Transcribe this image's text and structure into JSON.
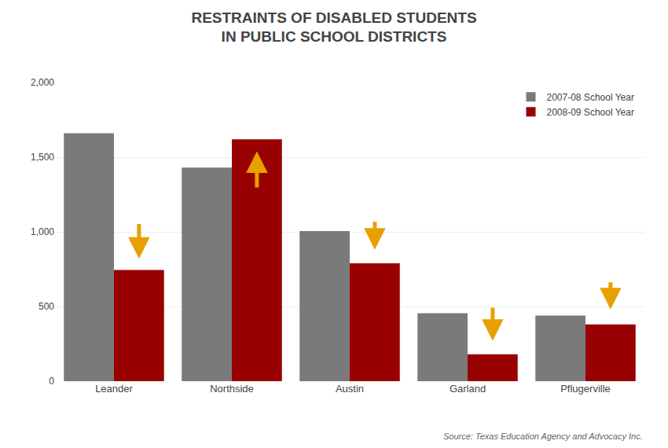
{
  "chart_data": {
    "type": "bar",
    "title": "RESTRAINTS OF DISABLED STUDENTS\nIN PUBLIC SCHOOL DISTRICTS",
    "categories": [
      "Leander",
      "Northside",
      "Austin",
      "Garland",
      "Pflugerville"
    ],
    "series": [
      {
        "name": "2007-08 School Year",
        "color": "#7a7a7a",
        "values": [
          1660,
          1430,
          1005,
          455,
          440
        ]
      },
      {
        "name": "2008-09 School Year",
        "color": "#990000",
        "values": [
          745,
          1620,
          790,
          180,
          380
        ]
      }
    ],
    "ylim": [
      0,
      2000
    ],
    "yticks": [
      0,
      500,
      {
        "value": 1000,
        "label": "1,000"
      },
      {
        "value": 1500,
        "label": "1,500"
      },
      {
        "value": 2000,
        "label": "2,000"
      }
    ],
    "grid": true,
    "legend": "upper right",
    "arrows": [
      {
        "category": "Leander",
        "series": "2008-09 School Year",
        "y_start": 1060,
        "y_end": 820,
        "color": "#E8A000"
      },
      {
        "category": "Northside",
        "series": "2008-09 School Year",
        "y_start": 1290,
        "y_end": 1540,
        "color": "#E8A000"
      },
      {
        "category": "Austin",
        "series": "2008-09 School Year",
        "y_start": 1075,
        "y_end": 880,
        "color": "#E8A000"
      },
      {
        "category": "Garland",
        "series": "2008-09 School Year",
        "y_start": 500,
        "y_end": 270,
        "color": "#E8A000"
      },
      {
        "category": "Pflugerville",
        "series": "2008-09 School Year",
        "y_start": 670,
        "y_end": 480,
        "color": "#E8A000"
      }
    ],
    "source": "Source: Texas Education Agency and Advocacy Inc."
  }
}
